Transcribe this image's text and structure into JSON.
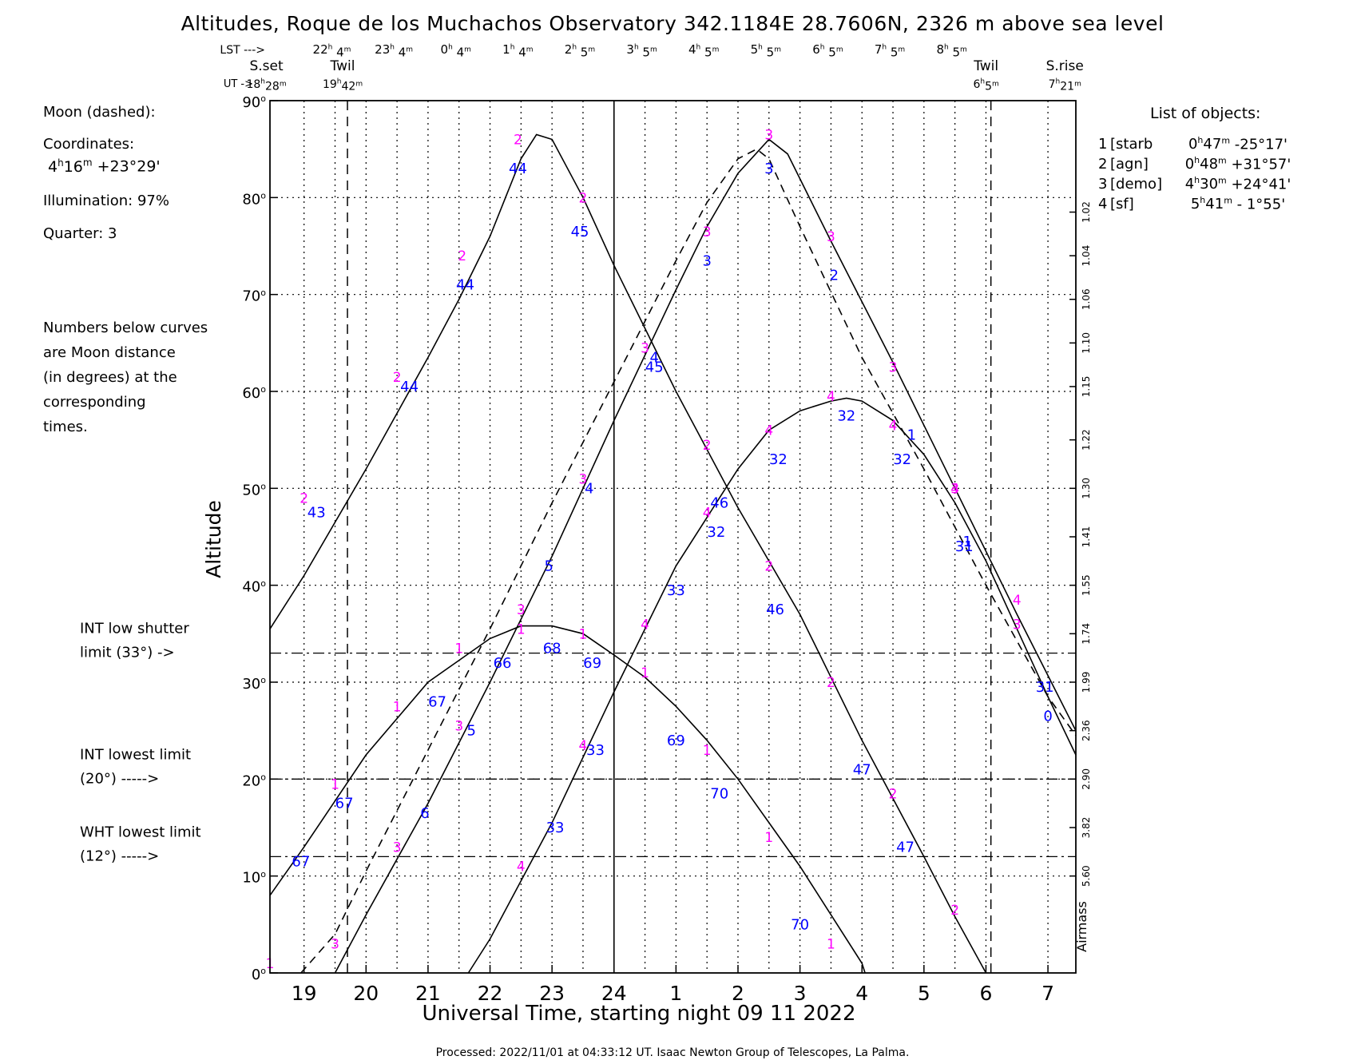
{
  "colors": {
    "curve": "#000000",
    "label_object": "#ff00ff",
    "label_moon_distance": "#0000ff",
    "grid": "#000000",
    "background": "#ffffff"
  },
  "chart_data": {
    "type": "line",
    "title": "Altitudes, Roque de los Muchachos Observatory 342.1184E  28.7606N, 2326 m above sea level",
    "xlabel": "Universal Time, starting night 09 11 2022",
    "ylabel": "Altitude",
    "right_axis_label": "Airmass",
    "footer": "Processed: 2022/11/01 at 04:33:12 UT. Isaac  Newton Group of Telescopes, La Palma.",
    "xlim": [
      18.45,
      31.45
    ],
    "ylim": [
      0,
      90
    ],
    "grid": true,
    "x_ticks": [
      {
        "x": 19,
        "label": "19"
      },
      {
        "x": 20,
        "label": "20"
      },
      {
        "x": 21,
        "label": "21"
      },
      {
        "x": 22,
        "label": "22"
      },
      {
        "x": 23,
        "label": "23"
      },
      {
        "x": 24,
        "label": "24"
      },
      {
        "x": 25,
        "label": "1"
      },
      {
        "x": 26,
        "label": "2"
      },
      {
        "x": 27,
        "label": "3"
      },
      {
        "x": 28,
        "label": "4"
      },
      {
        "x": 29,
        "label": "5"
      },
      {
        "x": 30,
        "label": "6"
      },
      {
        "x": 31,
        "label": "7"
      }
    ],
    "y_ticks": [
      {
        "y": 0,
        "label": "0°"
      },
      {
        "y": 10,
        "label": "10°"
      },
      {
        "y": 20,
        "label": "20°"
      },
      {
        "y": 30,
        "label": "30°"
      },
      {
        "y": 40,
        "label": "40°"
      },
      {
        "y": 50,
        "label": "50°"
      },
      {
        "y": 60,
        "label": "60°"
      },
      {
        "y": 70,
        "label": "70°"
      },
      {
        "y": 80,
        "label": "80°"
      },
      {
        "y": 90,
        "label": "90°"
      }
    ],
    "airmass_ticks": [
      {
        "alt": 78.5,
        "label": "1.02"
      },
      {
        "alt": 74,
        "label": "1.04"
      },
      {
        "alt": 69.5,
        "label": "1.06"
      },
      {
        "alt": 65,
        "label": "1.10"
      },
      {
        "alt": 60.5,
        "label": "1.15"
      },
      {
        "alt": 55,
        "label": "1.22"
      },
      {
        "alt": 50,
        "label": "1.30"
      },
      {
        "alt": 45,
        "label": "1.41"
      },
      {
        "alt": 40,
        "label": "1.55"
      },
      {
        "alt": 35,
        "label": "1.74"
      },
      {
        "alt": 30,
        "label": "1.99"
      },
      {
        "alt": 25,
        "label": "2.36"
      },
      {
        "alt": 20,
        "label": "2.90"
      },
      {
        "alt": 15,
        "label": "3.82"
      },
      {
        "alt": 10,
        "label": "5.60"
      }
    ],
    "lst_row": {
      "prefix": "LST --->",
      "ticks": [
        {
          "x": 19.5,
          "h": "22",
          "m": "4"
        },
        {
          "x": 20.5,
          "h": "23",
          "m": "4"
        },
        {
          "x": 21.5,
          "h": "0",
          "m": "4"
        },
        {
          "x": 22.5,
          "h": "1",
          "m": "4"
        },
        {
          "x": 23.5,
          "h": "2",
          "m": "5"
        },
        {
          "x": 24.5,
          "h": "3",
          "m": "5"
        },
        {
          "x": 25.5,
          "h": "4",
          "m": "5"
        },
        {
          "x": 26.5,
          "h": "5",
          "m": "5"
        },
        {
          "x": 27.5,
          "h": "6",
          "m": "5"
        },
        {
          "x": 28.5,
          "h": "7",
          "m": "5"
        },
        {
          "x": 29.5,
          "h": "8",
          "m": "5"
        }
      ]
    },
    "ut_prefix": "UT ->",
    "events": [
      {
        "x": 18.47,
        "name": "S.set",
        "h": "18",
        "m": "28",
        "line": false
      },
      {
        "x": 19.7,
        "name": "Twil",
        "h": "19",
        "m": "42",
        "line": true
      },
      {
        "x": 30.08,
        "name": "Twil",
        "h": "6",
        "m": "5",
        "line": true
      },
      {
        "x": 31.35,
        "name": "S.rise",
        "h": "7",
        "m": "21",
        "line": false
      }
    ],
    "midnight_x": 24,
    "limits": [
      {
        "alt": 33,
        "label1": "INT low shutter",
        "label2": "limit (33°) ->"
      },
      {
        "alt": 20,
        "label1": "INT lowest limit",
        "label2": "(20°) ----->"
      },
      {
        "alt": 12,
        "label1": "WHT lowest limit",
        "label2": "(12°) ----->"
      }
    ],
    "moon_info": {
      "title": "Moon (dashed):",
      "coord_label": "Coordinates:",
      "ra_h": "4",
      "ra_m": "16",
      "dec": "+23°29'",
      "illumination": "Illumination:  97%",
      "quarter": "Quarter: 3"
    },
    "note": [
      "Numbers below curves",
      "are Moon distance",
      "(in degrees) at the",
      "corresponding",
      "times."
    ],
    "objects_title": "List of objects:",
    "objects": [
      {
        "num": "1",
        "name": "[starb",
        "ra_h": "0",
        "ra_m": "47",
        "dec": "-25°17'"
      },
      {
        "num": "2",
        "name": "[agn]",
        "ra_h": "0",
        "ra_m": "48",
        "dec": "+31°57'"
      },
      {
        "num": "3",
        "name": "[demo]",
        "ra_h": "4",
        "ra_m": "30",
        "dec": "+24°41'"
      },
      {
        "num": "4",
        "name": "[sf]",
        "ra_h": "5",
        "ra_m": "41",
        "dec": "- 1°55'"
      }
    ],
    "series": [
      {
        "name": "1",
        "dashed": false,
        "points": [
          [
            18.45,
            8
          ],
          [
            19,
            13
          ],
          [
            20,
            22.5
          ],
          [
            21,
            30
          ],
          [
            22,
            34.5
          ],
          [
            22.5,
            35.8
          ],
          [
            23,
            35.8
          ],
          [
            23.5,
            35
          ],
          [
            24,
            32.8
          ],
          [
            24.5,
            30.5
          ],
          [
            25,
            27.5
          ],
          [
            25.5,
            24
          ],
          [
            26,
            20
          ],
          [
            26.5,
            15.5
          ],
          [
            27,
            11
          ],
          [
            27.5,
            6
          ],
          [
            28,
            1
          ],
          [
            28.05,
            0
          ]
        ],
        "labels": [
          [
            18.45,
            0.5,
            "1"
          ],
          [
            19.5,
            19,
            "1"
          ],
          [
            20.5,
            27,
            "1"
          ],
          [
            21.5,
            33,
            "1"
          ],
          [
            22.5,
            35,
            "1"
          ],
          [
            23.5,
            34.5,
            "1"
          ],
          [
            24.5,
            30.5,
            "1"
          ],
          [
            25.5,
            22.5,
            "1"
          ],
          [
            26.5,
            13.5,
            "1"
          ],
          [
            27.5,
            2.5,
            "1"
          ]
        ],
        "moon": [
          [
            18.95,
            11,
            "67"
          ],
          [
            19.65,
            17,
            "67"
          ],
          [
            21.15,
            27.5,
            "67"
          ],
          [
            22.2,
            31.5,
            "66"
          ],
          [
            23,
            33,
            "68"
          ],
          [
            23.65,
            31.5,
            "69"
          ],
          [
            25,
            23.5,
            "69"
          ],
          [
            25.7,
            18,
            "70"
          ],
          [
            27,
            4.5,
            "70"
          ]
        ]
      },
      {
        "name": "2",
        "dashed": false,
        "points": [
          [
            18.45,
            35.5
          ],
          [
            19,
            41
          ],
          [
            20,
            52
          ],
          [
            21,
            63.5
          ],
          [
            21.5,
            69.5
          ],
          [
            22,
            76
          ],
          [
            22.5,
            84
          ],
          [
            22.75,
            86.5
          ],
          [
            23,
            86
          ],
          [
            23.5,
            80
          ],
          [
            24,
            73
          ],
          [
            25,
            60
          ],
          [
            26,
            48
          ],
          [
            27,
            37
          ],
          [
            28,
            24
          ],
          [
            29,
            12
          ],
          [
            29.5,
            5.8
          ],
          [
            30,
            0
          ]
        ],
        "labels": [
          [
            19,
            48.5,
            "2"
          ],
          [
            20.5,
            61,
            "2"
          ],
          [
            21.55,
            73.5,
            "2"
          ],
          [
            22.45,
            85.5,
            "2"
          ],
          [
            23.5,
            79.5,
            "2"
          ],
          [
            25.5,
            54,
            "2"
          ],
          [
            26.5,
            41.5,
            "2"
          ],
          [
            27.5,
            29.5,
            "2"
          ],
          [
            28.5,
            18,
            "2"
          ],
          [
            29.5,
            6,
            "2"
          ]
        ],
        "moon": [
          [
            19.2,
            47,
            "43"
          ],
          [
            20.7,
            60,
            "44"
          ],
          [
            21.6,
            70.5,
            "44"
          ],
          [
            22.45,
            82.5,
            "44"
          ],
          [
            23.45,
            76,
            "45"
          ],
          [
            24.65,
            62,
            "45"
          ],
          [
            25.7,
            48,
            "46"
          ],
          [
            26.6,
            37,
            "46"
          ],
          [
            28,
            20.5,
            "47"
          ],
          [
            28.7,
            12.5,
            "47"
          ]
        ]
      },
      {
        "name": "3",
        "dashed": false,
        "points": [
          [
            19.5,
            0
          ],
          [
            20,
            6
          ],
          [
            21,
            17.5
          ],
          [
            22,
            30
          ],
          [
            23,
            43
          ],
          [
            24,
            57
          ],
          [
            25,
            70.5
          ],
          [
            25.5,
            77
          ],
          [
            26,
            82.5
          ],
          [
            26.5,
            86
          ],
          [
            26.8,
            84.5
          ],
          [
            27.5,
            75.5
          ],
          [
            28.5,
            63
          ],
          [
            29.5,
            50
          ],
          [
            30.5,
            37
          ],
          [
            31.45,
            25
          ]
        ],
        "labels": [
          [
            19.5,
            2.5,
            "3"
          ],
          [
            20.5,
            12.5,
            "3"
          ],
          [
            21.5,
            25,
            "3"
          ],
          [
            22.5,
            37,
            "3"
          ],
          [
            23.5,
            50.5,
            "3"
          ],
          [
            24.5,
            64,
            "3"
          ],
          [
            25.5,
            76,
            "3"
          ],
          [
            26.5,
            86,
            "3"
          ],
          [
            27.5,
            75.5,
            "3"
          ],
          [
            28.5,
            62,
            "3"
          ],
          [
            29.5,
            49.5,
            "3"
          ],
          [
            30.5,
            35.5,
            "3"
          ]
        ],
        "moon": [
          [
            20.95,
            16,
            "6"
          ],
          [
            21.7,
            24.5,
            "5"
          ],
          [
            22.95,
            41.5,
            "5"
          ],
          [
            23.6,
            49.5,
            "4"
          ],
          [
            24.65,
            63,
            "4"
          ],
          [
            25.5,
            73,
            "3"
          ],
          [
            26.5,
            82.5,
            "3"
          ],
          [
            27.55,
            71.5,
            "2"
          ],
          [
            28.8,
            55,
            "1"
          ],
          [
            29.7,
            44,
            "1"
          ],
          [
            31,
            26,
            "0"
          ]
        ]
      },
      {
        "name": "4",
        "dashed": false,
        "points": [
          [
            21.65,
            0
          ],
          [
            22,
            3.5
          ],
          [
            23,
            15.5
          ],
          [
            24,
            29
          ],
          [
            25,
            42
          ],
          [
            26,
            52
          ],
          [
            26.5,
            56
          ],
          [
            27,
            58
          ],
          [
            27.5,
            59
          ],
          [
            27.75,
            59.3
          ],
          [
            28,
            59
          ],
          [
            28.5,
            57
          ],
          [
            29,
            53.5
          ],
          [
            29.5,
            48.5
          ],
          [
            30,
            42.5
          ],
          [
            30.5,
            35.5
          ],
          [
            31,
            28.5
          ],
          [
            31.45,
            22.5
          ]
        ],
        "labels": [
          [
            22.5,
            10.5,
            "4"
          ],
          [
            23.5,
            23,
            "4"
          ],
          [
            24.5,
            35.5,
            "4"
          ],
          [
            25.5,
            47,
            "4"
          ],
          [
            26.5,
            55.5,
            "4"
          ],
          [
            27.5,
            59,
            "4"
          ],
          [
            28.5,
            56,
            "4"
          ],
          [
            29.5,
            49.5,
            "4"
          ],
          [
            30.5,
            38,
            "4"
          ]
        ],
        "moon": [
          [
            23.05,
            14.5,
            "33"
          ],
          [
            23.7,
            22.5,
            "33"
          ],
          [
            25,
            39,
            "33"
          ],
          [
            25.65,
            45,
            "32"
          ],
          [
            26.65,
            52.5,
            "32"
          ],
          [
            27.75,
            57,
            "32"
          ],
          [
            28.65,
            52.5,
            "32"
          ],
          [
            29.65,
            43.5,
            "31"
          ],
          [
            30.95,
            29,
            "31"
          ]
        ]
      },
      {
        "name": "Moon",
        "dashed": true,
        "points": [
          [
            18.95,
            0
          ],
          [
            19.5,
            4
          ],
          [
            20,
            10.5
          ],
          [
            21,
            23
          ],
          [
            22,
            35.5
          ],
          [
            23,
            48.5
          ],
          [
            24,
            61
          ],
          [
            25,
            73.5
          ],
          [
            25.5,
            79.5
          ],
          [
            26,
            84
          ],
          [
            26.3,
            85
          ],
          [
            26.5,
            84
          ],
          [
            27,
            77
          ],
          [
            28,
            63.5
          ],
          [
            29,
            52
          ],
          [
            30,
            40
          ],
          [
            31,
            28.5
          ],
          [
            31.45,
            24.5
          ]
        ],
        "labels": [],
        "moon": []
      }
    ]
  }
}
